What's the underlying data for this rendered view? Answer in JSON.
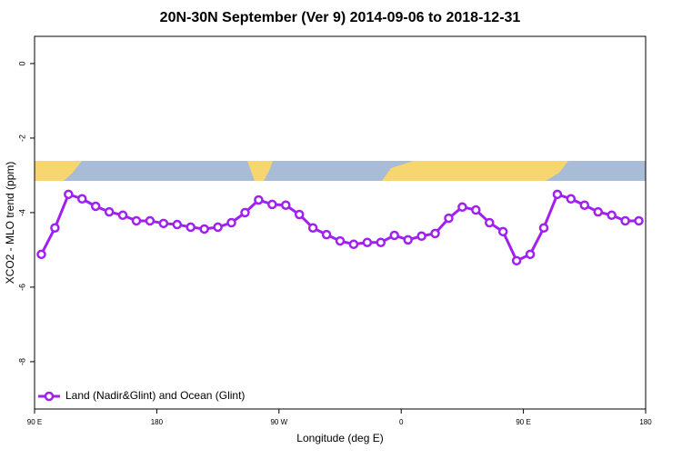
{
  "chart_data": {
    "type": "line",
    "title": "20N-30N September (Ver 9)   2014-09-06 to 2018-12-31",
    "x_label": "Longitude (deg E)",
    "y_label": "XCO2 - MLO trend (ppm)",
    "x": [
      95,
      105,
      115,
      125,
      135,
      145,
      155,
      165,
      175,
      185,
      195,
      205,
      215,
      225,
      235,
      245,
      255,
      265,
      275,
      285,
      295,
      305,
      315,
      325,
      335,
      345,
      355,
      365,
      375,
      385,
      395,
      405,
      415,
      425,
      435,
      445,
      455,
      465,
      475,
      485,
      495,
      505,
      515,
      525,
      535
    ],
    "series": [
      {
        "name": "Land (Nadir&Glint) and Ocean (Glint)",
        "color": "#a020f0",
        "values": [
          -5.12,
          -4.41,
          -3.51,
          -3.63,
          -3.83,
          -3.98,
          -4.07,
          -4.22,
          -4.22,
          -4.29,
          -4.32,
          -4.39,
          -4.44,
          -4.39,
          -4.27,
          -4.0,
          -3.66,
          -3.78,
          -3.8,
          -4.05,
          -4.41,
          -4.59,
          -4.76,
          -4.85,
          -4.8,
          -4.8,
          -4.61,
          -4.73,
          -4.63,
          -4.56,
          -4.15,
          -3.85,
          -3.93,
          -4.27,
          -4.51,
          -5.29,
          -5.12,
          -4.41,
          -3.51,
          -3.63,
          -3.8,
          -3.98,
          -4.07,
          -4.22,
          -4.22
        ]
      }
    ],
    "xlim": [
      90,
      540
    ],
    "xticks": [
      {
        "value": 90,
        "label": "90 E"
      },
      180,
      {
        "value": 270,
        "label": "90 W"
      },
      {
        "value": 360,
        "label": "0"
      },
      {
        "value": 450,
        "label": "90 E"
      },
      {
        "value": 540,
        "label": "180"
      }
    ],
    "ylim": [
      -9.27,
      0.73
    ],
    "yticks": [
      0,
      -2,
      -4,
      -6,
      -8
    ],
    "legend": "bottom-left"
  }
}
